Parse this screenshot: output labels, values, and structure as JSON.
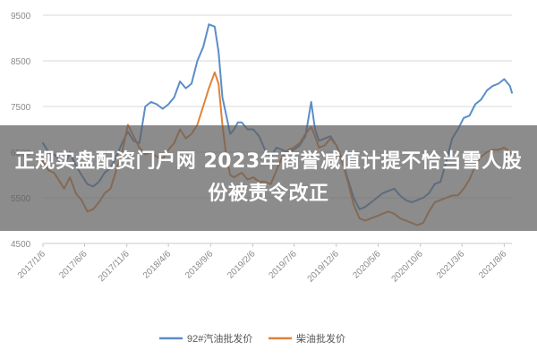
{
  "overlay": {
    "title": "正规实盘配资门户网 2023年商誉减值计提不恰当雪人股份被责令改正"
  },
  "chart_data": {
    "type": "line",
    "title": "",
    "xlabel": "",
    "ylabel": "",
    "ylim": [
      4500,
      9500
    ],
    "yticks": [
      4500,
      5500,
      6500,
      7500,
      8500,
      9500
    ],
    "xlim": [
      "2017/1/6",
      "2021/9/3"
    ],
    "xticks": [
      "2017/1/6",
      "2017/6/6",
      "2017/11/6",
      "2018/4/6",
      "2018/9/6",
      "2019/2/6",
      "2019/7/6",
      "2019/12/6",
      "2020/5/6",
      "2020/10/6",
      "2021/3/6",
      "2021/8/6"
    ],
    "grid": "horizontal",
    "legend": "bottom-center",
    "colors": {
      "gasoline": "#5b8ec8",
      "diesel": "#e0833a"
    },
    "series": [
      {
        "name": "92#汽油批发价",
        "x": [
          "2017/1/6",
          "2017/1/26",
          "2017/2/15",
          "2017/3/3",
          "2017/3/24",
          "2017/4/14",
          "2017/5/5",
          "2017/5/26",
          "2017/6/16",
          "2017/7/7",
          "2017/7/28",
          "2017/8/18",
          "2017/9/8",
          "2017/9/29",
          "2017/10/20",
          "2017/11/10",
          "2017/12/1",
          "2017/12/22",
          "2018/1/12",
          "2018/2/2",
          "2018/2/23",
          "2018/3/16",
          "2018/4/6",
          "2018/4/27",
          "2018/5/18",
          "2018/6/8",
          "2018/6/29",
          "2018/7/20",
          "2018/8/10",
          "2018/8/31",
          "2018/9/21",
          "2018/10/5",
          "2018/10/19",
          "2018/11/2",
          "2018/11/16",
          "2018/11/30",
          "2018/12/14",
          "2018/12/28",
          "2019/1/18",
          "2019/2/8",
          "2019/3/1",
          "2019/3/22",
          "2019/4/12",
          "2019/5/3",
          "2019/5/24",
          "2019/6/14",
          "2019/7/5",
          "2019/7/26",
          "2019/8/16",
          "2019/9/6",
          "2019/9/20",
          "2019/10/4",
          "2019/10/25",
          "2019/11/15",
          "2019/12/6",
          "2019/12/27",
          "2020/1/17",
          "2020/2/7",
          "2020/2/28",
          "2020/3/20",
          "2020/4/10",
          "2020/5/1",
          "2020/5/22",
          "2020/6/12",
          "2020/7/3",
          "2020/7/24",
          "2020/8/14",
          "2020/9/4",
          "2020/9/25",
          "2020/10/16",
          "2020/11/6",
          "2020/11/27",
          "2020/12/18",
          "2021/1/8",
          "2021/1/29",
          "2021/2/19",
          "2021/3/12",
          "2021/4/2",
          "2021/4/23",
          "2021/5/14",
          "2021/6/4",
          "2021/6/25",
          "2021/7/16",
          "2021/8/6",
          "2021/8/27",
          "2021/9/3"
        ],
        "values": [
          6700,
          6500,
          6450,
          6350,
          6200,
          6500,
          6200,
          6000,
          5800,
          5750,
          5850,
          6050,
          6150,
          6400,
          6700,
          6950,
          6750,
          6700,
          7500,
          7600,
          7550,
          7450,
          7550,
          7700,
          8050,
          7900,
          8000,
          8500,
          8800,
          9300,
          9250,
          8700,
          7700,
          7300,
          6900,
          7000,
          7150,
          7150,
          7000,
          7000,
          6850,
          6550,
          6400,
          6600,
          6550,
          6500,
          6550,
          6650,
          6850,
          7600,
          7000,
          6750,
          6800,
          6850,
          6650,
          6350,
          5900,
          5500,
          5250,
          5300,
          5400,
          5500,
          5600,
          5650,
          5700,
          5550,
          5450,
          5400,
          5450,
          5500,
          5600,
          5800,
          5850,
          6300,
          6800,
          7000,
          7250,
          7300,
          7550,
          7650,
          7850,
          7950,
          8000,
          8100,
          7950,
          7800
        ]
      },
      {
        "name": "柴油批发价",
        "x": [
          "2017/1/6",
          "2017/1/26",
          "2017/2/15",
          "2017/3/3",
          "2017/3/24",
          "2017/4/14",
          "2017/5/5",
          "2017/5/26",
          "2017/6/16",
          "2017/7/7",
          "2017/7/28",
          "2017/8/18",
          "2017/9/8",
          "2017/9/29",
          "2017/10/20",
          "2017/11/10",
          "2017/12/1",
          "2017/12/22",
          "2018/1/12",
          "2018/2/2",
          "2018/2/23",
          "2018/3/16",
          "2018/4/6",
          "2018/4/27",
          "2018/5/18",
          "2018/6/8",
          "2018/6/29",
          "2018/7/20",
          "2018/8/10",
          "2018/8/31",
          "2018/9/21",
          "2018/10/5",
          "2018/10/19",
          "2018/11/2",
          "2018/11/16",
          "2018/11/30",
          "2018/12/14",
          "2018/12/28",
          "2019/1/18",
          "2019/2/8",
          "2019/3/1",
          "2019/3/22",
          "2019/4/12",
          "2019/5/3",
          "2019/5/24",
          "2019/6/14",
          "2019/7/5",
          "2019/7/26",
          "2019/8/16",
          "2019/9/6",
          "2019/9/20",
          "2019/10/4",
          "2019/10/25",
          "2019/11/15",
          "2019/12/6",
          "2019/12/27",
          "2020/1/17",
          "2020/2/7",
          "2020/2/28",
          "2020/3/20",
          "2020/4/10",
          "2020/5/1",
          "2020/5/22",
          "2020/6/12",
          "2020/7/3",
          "2020/7/24",
          "2020/8/14",
          "2020/9/4",
          "2020/9/25",
          "2020/10/16",
          "2020/11/6",
          "2020/11/27",
          "2020/12/18",
          "2021/1/8",
          "2021/1/29",
          "2021/2/19",
          "2021/3/12",
          "2021/4/2",
          "2021/4/23",
          "2021/5/14",
          "2021/6/4",
          "2021/6/25",
          "2021/7/16",
          "2021/8/6",
          "2021/8/27",
          "2021/9/3"
        ],
        "values": [
          6300,
          6100,
          6050,
          5900,
          5700,
          5950,
          5600,
          5450,
          5200,
          5250,
          5400,
          5600,
          5700,
          6100,
          6500,
          7100,
          6850,
          6600,
          6450,
          6500,
          6400,
          6350,
          6550,
          6700,
          7000,
          6800,
          6900,
          7100,
          7500,
          7900,
          8250,
          8000,
          7100,
          6400,
          6000,
          5950,
          6000,
          6050,
          5900,
          5950,
          5850,
          5850,
          5800,
          6100,
          6400,
          6550,
          6600,
          6700,
          6900,
          7050,
          6850,
          6600,
          6650,
          6800,
          6650,
          6300,
          5850,
          5350,
          5050,
          5000,
          5050,
          5100,
          5150,
          5200,
          5150,
          5050,
          5000,
          4950,
          4900,
          4950,
          5200,
          5400,
          5450,
          5500,
          5550,
          5550,
          5700,
          5900,
          6200,
          6400,
          6500,
          6550,
          6550,
          6600,
          6500,
          6450
        ]
      }
    ]
  }
}
